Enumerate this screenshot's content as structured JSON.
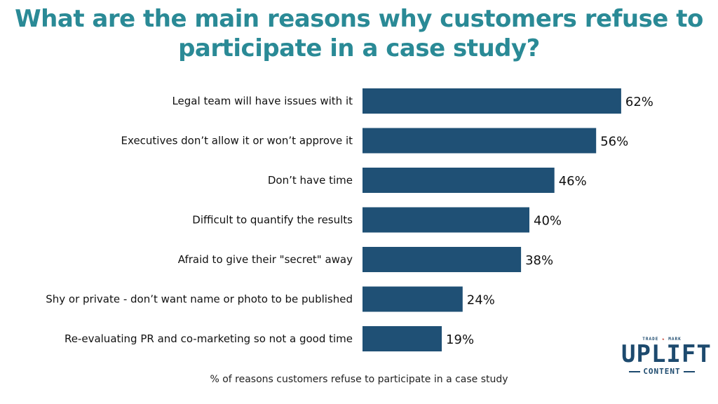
{
  "title": {
    "line1": "What are the main reasons why customers refuse to",
    "line2": "participate in a case study?"
  },
  "chart_data": {
    "type": "bar",
    "orientation": "horizontal",
    "categories": [
      "Legal team will have issues with it",
      "Executives don’t allow it or won’t approve it",
      "Don’t have time",
      "Difficult to quantify the results",
      "Afraid to give their \"secret\" away",
      "Shy or private - don’t want name or photo to be published",
      "Re-evaluating PR and co-marketing so not a good time"
    ],
    "values": [
      62,
      56,
      46,
      40,
      38,
      24,
      19
    ],
    "value_labels": [
      "62%",
      "56%",
      "46%",
      "40%",
      "38%",
      "24%",
      "19%"
    ],
    "xlabel": "% of reasons customers refuse to participate in a case study",
    "xlim": [
      0,
      100
    ],
    "grid": false,
    "bar_color": "#1f5075"
  },
  "logo": {
    "top": "TRADE",
    "top2": "MARK",
    "main": "UPLIFT",
    "sub": "CONTENT"
  },
  "colors": {
    "title": "#2a8a96",
    "bar": "#1f5075",
    "logo": "#1d4a6e"
  }
}
